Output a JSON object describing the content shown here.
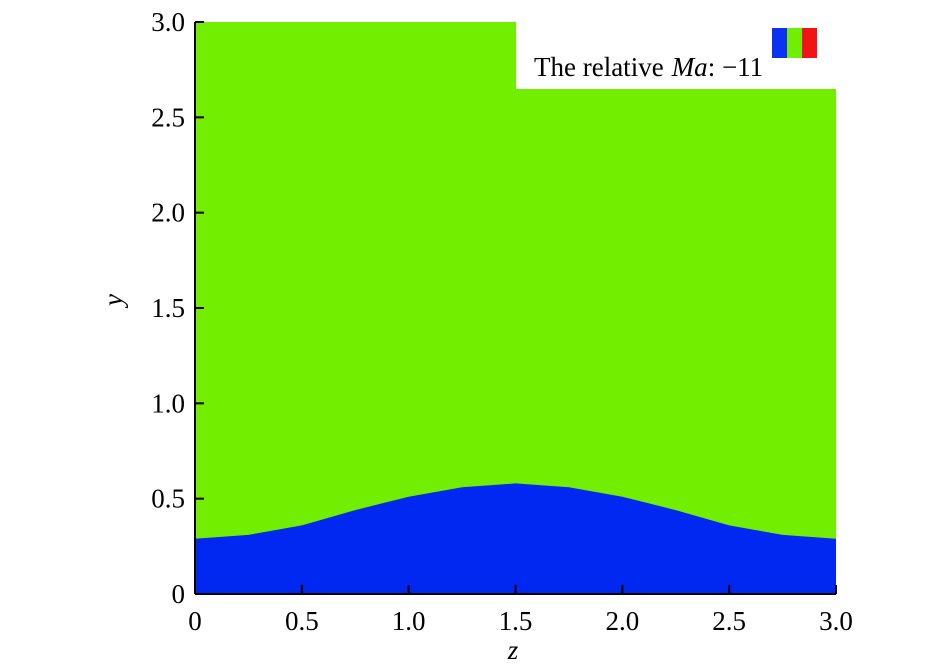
{
  "chart_data": {
    "type": "contour",
    "x": [
      0,
      0.25,
      0.5,
      0.75,
      1.0,
      1.25,
      1.5,
      1.75,
      2.0,
      2.25,
      2.5,
      2.75,
      3.0
    ],
    "values": [
      0.29,
      0.31,
      0.36,
      0.44,
      0.51,
      0.56,
      0.58,
      0.56,
      0.51,
      0.44,
      0.36,
      0.31,
      0.29
    ],
    "colors": [
      "#0028f0",
      "#72ee00"
    ],
    "xlabel": "z",
    "ylabel": "y",
    "xlim": [
      0,
      3
    ],
    "ylim": [
      0,
      3
    ],
    "xticks": [
      0,
      0.5,
      {
        "value": 1,
        "label": "1.0"
      },
      1.5,
      {
        "value": 2,
        "label": "2.0"
      },
      2.5,
      {
        "value": 3,
        "label": "3.0"
      }
    ],
    "yticks": [
      0,
      0.5,
      {
        "value": 1,
        "label": "1.0"
      },
      1.5,
      {
        "value": 2,
        "label": "2.0"
      },
      2.5,
      {
        "value": 3,
        "label": "3.0"
      }
    ],
    "legend": {
      "colors": [
        "#0a32f0",
        "#72ee00",
        "#f01414"
      ],
      "prefix": "The relative",
      "symbol": "Ma",
      "suffix": ": −11"
    }
  }
}
